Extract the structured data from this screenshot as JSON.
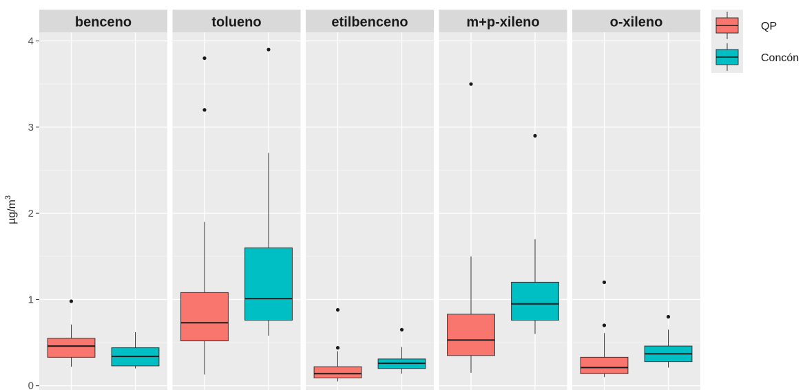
{
  "chart_data": {
    "type": "boxplot",
    "ylabel": "µg/m",
    "ylabel_superscript": "3",
    "ylim": [
      -0.05,
      4.1
    ],
    "yticks": [
      0,
      1,
      2,
      3,
      4
    ],
    "ytick_labels": [
      "0",
      "1",
      "2",
      "3",
      "4"
    ],
    "grid": true,
    "legend_position": "right",
    "series": [
      {
        "name": "QP",
        "color": "#F8766D"
      },
      {
        "name": "Concón",
        "color": "#00BFC4"
      }
    ],
    "panels": [
      {
        "title": "benceno",
        "boxes": [
          {
            "series": "QP",
            "whisker_low": 0.22,
            "q1": 0.33,
            "median": 0.46,
            "q3": 0.55,
            "whisker_high": 0.71,
            "outliers": [
              0.98
            ]
          },
          {
            "series": "Concón",
            "whisker_low": 0.2,
            "q1": 0.23,
            "median": 0.34,
            "q3": 0.44,
            "whisker_high": 0.62,
            "outliers": []
          }
        ]
      },
      {
        "title": "tolueno",
        "boxes": [
          {
            "series": "QP",
            "whisker_low": 0.13,
            "q1": 0.52,
            "median": 0.73,
            "q3": 1.08,
            "whisker_high": 1.9,
            "outliers": [
              3.2,
              3.8
            ]
          },
          {
            "series": "Concón",
            "whisker_low": 0.58,
            "q1": 0.76,
            "median": 1.01,
            "q3": 1.6,
            "whisker_high": 2.7,
            "outliers": [
              3.9
            ]
          }
        ]
      },
      {
        "title": "etilbenceno",
        "boxes": [
          {
            "series": "QP",
            "whisker_low": 0.05,
            "q1": 0.09,
            "median": 0.14,
            "q3": 0.22,
            "whisker_high": 0.4,
            "outliers": [
              0.44,
              0.88
            ]
          },
          {
            "series": "Concón",
            "whisker_low": 0.14,
            "q1": 0.2,
            "median": 0.26,
            "q3": 0.31,
            "whisker_high": 0.45,
            "outliers": [
              0.65
            ]
          }
        ]
      },
      {
        "title": "m+p-xileno",
        "boxes": [
          {
            "series": "QP",
            "whisker_low": 0.15,
            "q1": 0.35,
            "median": 0.53,
            "q3": 0.83,
            "whisker_high": 1.5,
            "outliers": [
              3.5
            ]
          },
          {
            "series": "Concón",
            "whisker_low": 0.6,
            "q1": 0.76,
            "median": 0.95,
            "q3": 1.2,
            "whisker_high": 1.7,
            "outliers": [
              2.9
            ]
          }
        ]
      },
      {
        "title": "o-xileno",
        "boxes": [
          {
            "series": "QP",
            "whisker_low": 0.1,
            "q1": 0.14,
            "median": 0.21,
            "q3": 0.33,
            "whisker_high": 0.61,
            "outliers": [
              0.7,
              1.2
            ]
          },
          {
            "series": "Concón",
            "whisker_low": 0.21,
            "q1": 0.28,
            "median": 0.37,
            "q3": 0.46,
            "whisker_high": 0.65,
            "outliers": [
              0.8
            ]
          }
        ]
      }
    ]
  }
}
